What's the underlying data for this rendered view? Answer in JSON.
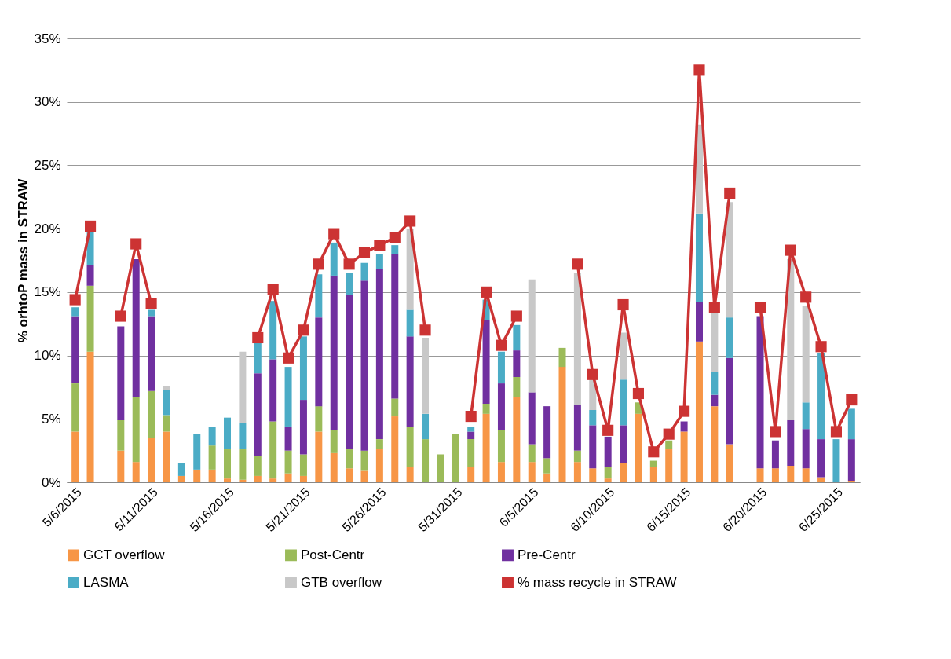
{
  "chart_data": {
    "type": "bar",
    "stacked": true,
    "ylabel": "% orhtoP mass in STRAW",
    "categories": [
      "5/6/2015",
      null,
      null,
      null,
      null,
      "5/11/2015",
      null,
      null,
      null,
      null,
      "5/16/2015",
      null,
      null,
      null,
      null,
      "5/21/2015",
      null,
      null,
      null,
      null,
      "5/26/2015",
      null,
      null,
      null,
      null,
      "5/31/2015",
      null,
      null,
      null,
      null,
      "6/5/2015",
      null,
      null,
      null,
      null,
      "6/10/2015",
      null,
      null,
      null,
      null,
      "6/15/2015",
      null,
      null,
      null,
      null,
      "6/20/2015",
      null,
      null,
      null,
      null,
      "6/25/2015",
      null
    ],
    "series": [
      {
        "name": "GCT overflow",
        "color": "#f79646",
        "values": [
          4.0,
          10.3,
          null,
          2.5,
          1.6,
          3.5,
          4.0,
          0.5,
          1.0,
          1.0,
          0.3,
          0.2,
          0.5,
          0.3,
          0.7,
          0.5,
          4.0,
          2.3,
          1.1,
          0.9,
          2.6,
          5.2,
          1.2,
          null,
          null,
          null,
          1.2,
          5.4,
          1.6,
          6.7,
          1.6,
          0.7,
          9.1,
          1.6,
          1.1,
          0.3,
          1.5,
          5.4,
          1.2,
          2.6,
          4.0,
          11.1,
          6.0,
          3.0,
          null,
          1.1,
          1.1,
          1.3,
          1.1,
          0.4,
          null,
          0.1
        ]
      },
      {
        "name": "Post-Centr",
        "color": "#9bbb59",
        "values": [
          3.8,
          5.2,
          null,
          2.4,
          5.1,
          3.7,
          1.3,
          null,
          null,
          1.9,
          2.3,
          2.4,
          1.6,
          4.5,
          1.8,
          1.7,
          2.0,
          1.8,
          1.5,
          1.6,
          0.8,
          1.4,
          3.2,
          3.4,
          2.2,
          3.8,
          2.2,
          0.8,
          2.5,
          1.6,
          1.4,
          1.2,
          1.5,
          0.9,
          null,
          0.9,
          null,
          0.9,
          0.5,
          0.7,
          null,
          null,
          null,
          null,
          null,
          null,
          null,
          null,
          null,
          null,
          null,
          null
        ]
      },
      {
        "name": "Pre-Centr",
        "color": "#7030a0",
        "values": [
          5.3,
          1.6,
          null,
          7.4,
          10.9,
          5.9,
          null,
          null,
          null,
          null,
          null,
          null,
          6.5,
          4.9,
          1.9,
          4.3,
          7.0,
          12.2,
          12.2,
          13.4,
          13.4,
          11.4,
          7.1,
          null,
          null,
          null,
          0.6,
          6.6,
          3.7,
          2.1,
          4.1,
          4.1,
          null,
          3.6,
          3.4,
          2.4,
          3.0,
          null,
          null,
          null,
          0.8,
          3.1,
          0.9,
          6.8,
          null,
          12.0,
          2.2,
          3.6,
          3.1,
          3.0,
          null,
          3.3
        ]
      },
      {
        "name": "LASMA",
        "color": "#4bacc6",
        "values": [
          0.7,
          2.6,
          null,
          null,
          null,
          0.5,
          2.0,
          1.0,
          2.8,
          1.5,
          2.5,
          2.1,
          2.4,
          4.6,
          4.7,
          5.0,
          3.4,
          2.6,
          1.7,
          1.4,
          1.2,
          0.7,
          2.1,
          2.0,
          null,
          null,
          0.4,
          1.6,
          2.5,
          2.0,
          null,
          null,
          null,
          null,
          1.2,
          null,
          3.6,
          null,
          null,
          null,
          null,
          7.0,
          1.8,
          3.2,
          null,
          null,
          null,
          null,
          2.1,
          6.8,
          3.4,
          2.4
        ]
      },
      {
        "name": "GTB overflow",
        "color": "#c8c8c8",
        "values": [
          null,
          null,
          null,
          null,
          null,
          null,
          0.3,
          null,
          null,
          null,
          null,
          5.6,
          null,
          null,
          null,
          null,
          null,
          null,
          null,
          null,
          null,
          null,
          6.4,
          6.0,
          null,
          null,
          null,
          null,
          null,
          null,
          8.9,
          null,
          null,
          10.4,
          2.4,
          null,
          3.7,
          null,
          null,
          null,
          null,
          7.0,
          4.7,
          9.1,
          null,
          null,
          null,
          12.7,
          7.6,
          null,
          null,
          null
        ]
      },
      {
        "name": "% mass recycle in STRAW",
        "type": "line",
        "color": "#cc3333",
        "marker": "square",
        "line_style": "solid",
        "values": [
          14.4,
          20.2,
          null,
          13.1,
          18.8,
          14.1,
          null,
          null,
          null,
          null,
          null,
          null,
          11.4,
          15.2,
          9.8,
          12.0,
          17.2,
          19.6,
          17.2,
          18.1,
          18.7,
          19.3,
          20.6,
          12.0,
          null,
          null,
          5.2,
          15.0,
          10.8,
          13.1,
          null,
          null,
          null,
          17.2,
          8.5,
          4.1,
          14.0,
          7.0,
          2.4,
          3.8,
          5.6,
          32.5,
          13.8,
          22.8,
          null,
          13.8,
          4.0,
          18.3,
          14.6,
          10.7,
          4.0,
          6.5
        ]
      }
    ],
    "ylim": [
      0,
      35
    ],
    "yticks": [
      {
        "value": 0,
        "label": "0%"
      },
      {
        "value": 5,
        "label": "5%"
      },
      {
        "value": 10,
        "label": "10%"
      },
      {
        "value": 15,
        "label": "15%"
      },
      {
        "value": 20,
        "label": "20%"
      },
      {
        "value": 25,
        "label": "25%"
      },
      {
        "value": 30,
        "label": "30%"
      },
      {
        "value": 35,
        "label": "35%"
      }
    ],
    "grid": "y",
    "legend": "bottom"
  }
}
